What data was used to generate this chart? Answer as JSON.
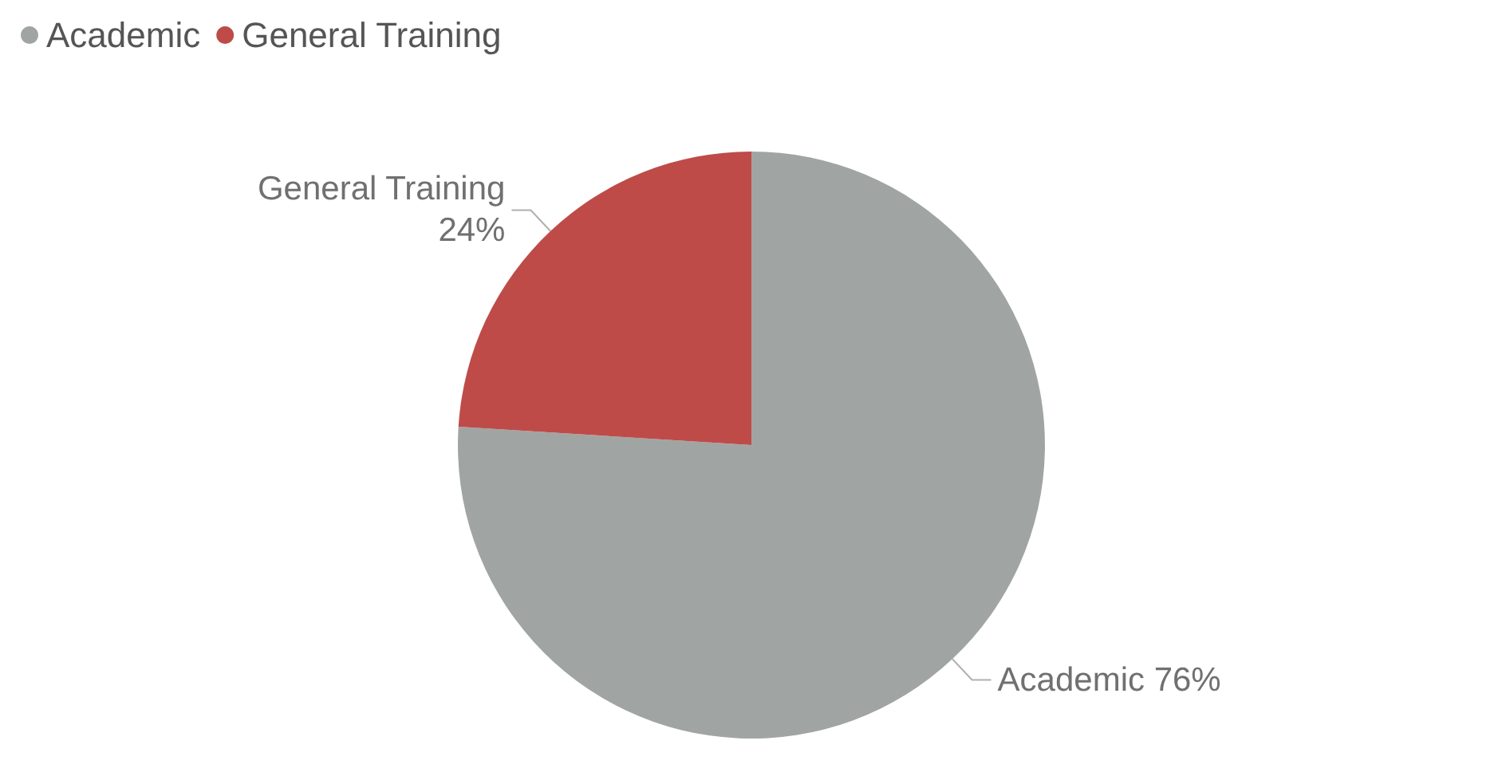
{
  "chart_data": {
    "type": "pie",
    "categories": [
      "Academic",
      "General Training"
    ],
    "values": [
      76,
      24
    ],
    "colors": [
      "#a0a5a4",
      "#be4b48"
    ],
    "value_labels": [
      "Academic 76%",
      "General Training\n24%"
    ],
    "legend": "top left"
  }
}
